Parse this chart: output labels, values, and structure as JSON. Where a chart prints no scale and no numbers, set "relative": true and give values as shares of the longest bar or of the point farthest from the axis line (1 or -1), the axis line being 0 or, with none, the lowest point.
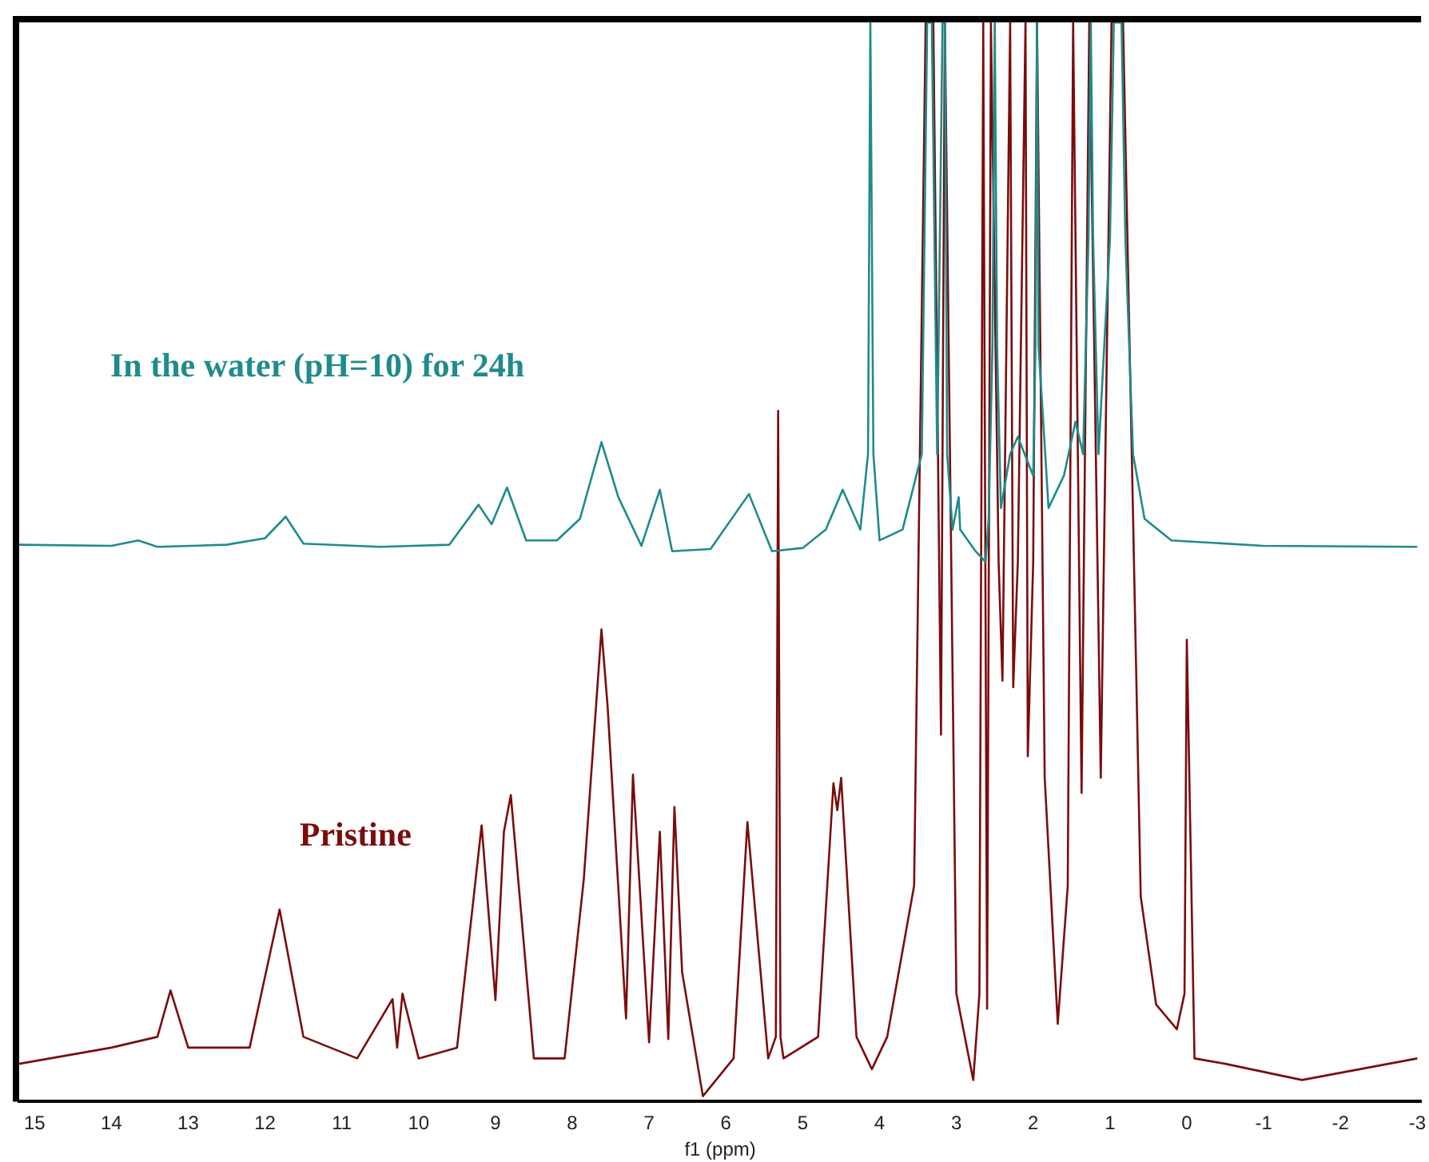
{
  "chart_data": {
    "type": "line",
    "relative": true,
    "xlabel": "f1 (ppm)",
    "xlim": [
      15.2,
      -3.05
    ],
    "xticks": [
      15,
      14,
      13,
      12,
      11,
      10,
      9,
      8,
      7,
      6,
      5,
      4,
      3,
      2,
      1,
      0,
      -1,
      -2,
      -3
    ],
    "grid": false,
    "legend": false,
    "marker": "none",
    "line_style": "solid",
    "series": [
      {
        "name": "In the water (pH=10) for 24h",
        "color": "#1f8b8b",
        "x": [
          15.2,
          14,
          13.65,
          13.4,
          12.5,
          12.0,
          11.73,
          11.5,
          10.5,
          9.6,
          9.22,
          9.05,
          8.85,
          8.6,
          8.2,
          7.9,
          7.62,
          7.4,
          7.1,
          6.86,
          6.7,
          6.2,
          5.7,
          5.4,
          5.0,
          4.7,
          4.48,
          4.25,
          4.15,
          4.12,
          4.08,
          4.0,
          3.7,
          3.45,
          3.38,
          3.32,
          3.25,
          3.18,
          3.15,
          3.12,
          3.05,
          2.97,
          2.95,
          2.75,
          2.62,
          2.58,
          2.53,
          2.5,
          2.47,
          2.42,
          2.3,
          2.2,
          2.0,
          1.97,
          1.95,
          1.93,
          1.8,
          1.6,
          1.45,
          1.35,
          1.28,
          1.25,
          1.22,
          1.15,
          1.0,
          0.95,
          0.85,
          0.8,
          0.7,
          0.55,
          0.2,
          -1,
          -3.0
        ],
        "values": [
          0.516,
          0.515,
          0.52,
          0.514,
          0.516,
          0.522,
          0.542,
          0.517,
          0.514,
          0.516,
          0.553,
          0.535,
          0.569,
          0.52,
          0.52,
          0.54,
          0.611,
          0.56,
          0.515,
          0.567,
          0.51,
          0.512,
          0.563,
          0.51,
          0.513,
          0.53,
          0.567,
          0.53,
          0.6,
          1,
          0.6,
          0.52,
          0.53,
          0.6,
          1,
          1,
          0.6,
          1,
          1,
          0.6,
          0.53,
          0.56,
          0.53,
          0.51,
          0.5,
          0.54,
          0.7,
          1,
          0.7,
          0.55,
          0.6,
          0.616,
          0.58,
          0.7,
          1,
          0.7,
          0.55,
          0.58,
          0.63,
          0.6,
          0.8,
          1,
          0.8,
          0.6,
          0.8,
          1,
          1,
          0.8,
          0.6,
          0.54,
          0.52,
          0.515,
          0.514
        ]
      },
      {
        "name": "Pristine",
        "color": "#7b0c0c",
        "x": [
          15.2,
          14,
          13.4,
          13.23,
          13.0,
          12.2,
          11.81,
          11.5,
          10.8,
          10.34,
          10.28,
          10.21,
          10.0,
          9.5,
          9.18,
          9.0,
          8.89,
          8.8,
          8.5,
          8.1,
          7.85,
          7.62,
          7.54,
          7.3,
          7.21,
          7.0,
          6.86,
          6.75,
          6.67,
          6.57,
          6.3,
          5.9,
          5.72,
          5.45,
          5.35,
          5.32,
          5.29,
          5.25,
          4.8,
          4.6,
          4.55,
          4.5,
          4.3,
          4.1,
          3.9,
          3.55,
          3.4,
          3.3,
          3.2,
          3.15,
          3.0,
          2.78,
          2.7,
          2.65,
          2.6,
          2.55,
          2.45,
          2.4,
          2.3,
          2.26,
          2.2,
          2.1,
          2.07,
          2.0,
          1.95,
          1.85,
          1.68,
          1.55,
          1.48,
          1.37,
          1.27,
          1.12,
          0.98,
          0.83,
          0.6,
          0.4,
          0.13,
          0.03,
          0.0,
          -0.1,
          -0.5,
          -1.5,
          -3.0
        ],
        "values": [
          0.035,
          0.05,
          0.06,
          0.103,
          0.05,
          0.05,
          0.178,
          0.06,
          0.04,
          0.095,
          0.05,
          0.1,
          0.04,
          0.05,
          0.256,
          0.094,
          0.25,
          0.284,
          0.04,
          0.04,
          0.206,
          0.4375,
          0.366,
          0.077,
          0.303,
          0.055,
          0.25,
          0.058,
          0.273,
          0.12,
          0.005,
          0.04,
          0.259,
          0.04,
          0.06,
          0.64,
          0.06,
          0.04,
          0.06,
          0.295,
          0.27,
          0.3,
          0.06,
          0.03,
          0.06,
          0.2,
          1,
          1,
          0.34,
          1,
          0.1,
          0.02,
          0.1,
          1,
          0.086,
          1,
          0.5,
          0.39,
          1,
          0.384,
          0.5,
          1,
          0.32,
          0.5,
          1,
          0.3,
          0.072,
          0.2,
          1,
          0.286,
          1,
          0.3,
          1,
          1,
          0.19,
          0.09,
          0.067,
          0.1,
          0.428,
          0.04,
          0.035,
          0.02,
          0.04
        ]
      }
    ]
  }
}
